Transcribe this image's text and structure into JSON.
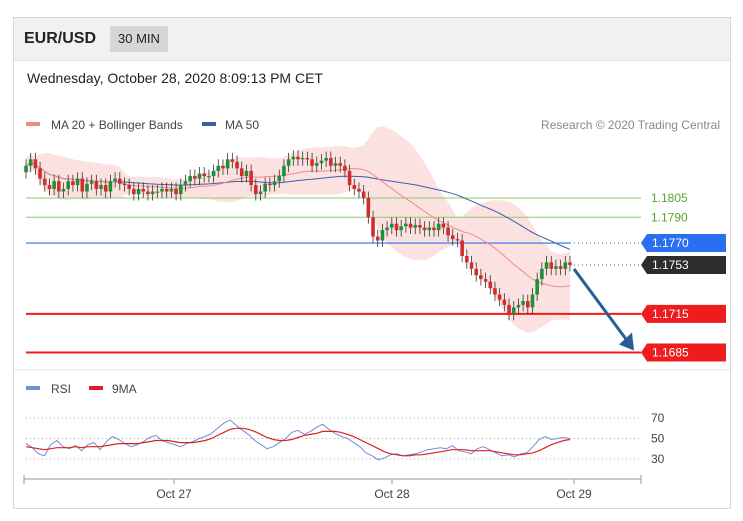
{
  "header": {
    "symbol": "EUR/USD",
    "timeframe": "30 MIN"
  },
  "timestamp": "Wednesday, October 28, 2020 8:09:13 PM CET",
  "legend": {
    "ma20": "MA 20 + Bollinger Bands",
    "ma50": "MA 50",
    "rsi": "RSI",
    "rsi_ma": "9MA"
  },
  "credit": "Research © 2020 Trading Central",
  "colors": {
    "ma20": "#f08a8a",
    "band": "#fbd9d9",
    "ma50": "#3a5fa8",
    "up": "#1f8f3a",
    "down": "#d62b2b",
    "support": "#ee1c1c",
    "resistance": "#8ccd6a",
    "pivot": "#2a6ff0",
    "current": "#2d2d2d",
    "arrow": "#2a5c9a",
    "rsi": "#6f8fd8",
    "rsi_ma": "#e02020"
  },
  "chart_data": [
    {
      "type": "candlestick",
      "title": "EUR/USD 30 MIN",
      "ylim": [
        1.1673,
        1.185
      ],
      "x_ticks": [
        "Oct 27",
        "Oct 28",
        "Oct 29"
      ],
      "levels": [
        {
          "label": "1.1805",
          "value": 1.1805,
          "kind": "resistance"
        },
        {
          "label": "1.1790",
          "value": 1.179,
          "kind": "resistance"
        },
        {
          "label": "1.1770",
          "value": 1.177,
          "kind": "pivot"
        },
        {
          "label": "1.1753",
          "value": 1.1753,
          "kind": "current"
        },
        {
          "label": "1.1715",
          "value": 1.1715,
          "kind": "support"
        },
        {
          "label": "1.1685",
          "value": 1.1685,
          "kind": "support"
        }
      ],
      "close": [
        1.183,
        1.1835,
        1.1828,
        1.182,
        1.1815,
        1.1812,
        1.1818,
        1.181,
        1.1812,
        1.1818,
        1.1815,
        1.182,
        1.181,
        1.1816,
        1.1818,
        1.1812,
        1.1815,
        1.181,
        1.1818,
        1.182,
        1.1816,
        1.1815,
        1.1812,
        1.1808,
        1.1812,
        1.181,
        1.1808,
        1.181,
        1.181,
        1.1812,
        1.181,
        1.1812,
        1.1808,
        1.1815,
        1.1818,
        1.1822,
        1.182,
        1.1824,
        1.1822,
        1.1822,
        1.1826,
        1.183,
        1.1828,
        1.1835,
        1.1833,
        1.1828,
        1.1822,
        1.1826,
        1.1815,
        1.1808,
        1.181,
        1.1816,
        1.1815,
        1.1818,
        1.1822,
        1.183,
        1.1835,
        1.1837,
        1.1835,
        1.1836,
        1.1835,
        1.183,
        1.1832,
        1.1834,
        1.1836,
        1.183,
        1.1832,
        1.183,
        1.1826,
        1.1815,
        1.1812,
        1.181,
        1.1805,
        1.179,
        1.1775,
        1.1772,
        1.178,
        1.1782,
        1.1785,
        1.178,
        1.1783,
        1.1785,
        1.1782,
        1.1784,
        1.1782,
        1.178,
        1.1782,
        1.178,
        1.1785,
        1.1782,
        1.1776,
        1.1773,
        1.1772,
        1.176,
        1.1755,
        1.175,
        1.1745,
        1.1742,
        1.174,
        1.1735,
        1.173,
        1.1726,
        1.1722,
        1.1715,
        1.172,
        1.1722,
        1.1725,
        1.172,
        1.173,
        1.1742,
        1.175,
        1.1755,
        1.175,
        1.1752,
        1.175,
        1.1755,
        1.1753
      ],
      "open": [
        1.1825,
        1.183,
        1.1835,
        1.1828,
        1.182,
        1.1815,
        1.1812,
        1.1818,
        1.181,
        1.1812,
        1.1818,
        1.1815,
        1.182,
        1.181,
        1.1816,
        1.1818,
        1.1812,
        1.1815,
        1.181,
        1.1818,
        1.182,
        1.1816,
        1.1815,
        1.1812,
        1.1808,
        1.1812,
        1.181,
        1.1808,
        1.181,
        1.181,
        1.1812,
        1.181,
        1.1812,
        1.1808,
        1.1815,
        1.1818,
        1.1822,
        1.182,
        1.1824,
        1.1822,
        1.1822,
        1.1826,
        1.183,
        1.1828,
        1.1835,
        1.1833,
        1.1828,
        1.1822,
        1.1826,
        1.1815,
        1.1808,
        1.181,
        1.1816,
        1.1815,
        1.1818,
        1.1822,
        1.183,
        1.1835,
        1.1837,
        1.1835,
        1.1836,
        1.1835,
        1.183,
        1.1832,
        1.1834,
        1.1836,
        1.183,
        1.1832,
        1.183,
        1.1826,
        1.1815,
        1.1812,
        1.181,
        1.1805,
        1.179,
        1.1775,
        1.1772,
        1.178,
        1.1782,
        1.1785,
        1.178,
        1.1783,
        1.1785,
        1.1782,
        1.1784,
        1.1782,
        1.178,
        1.1782,
        1.178,
        1.1785,
        1.1782,
        1.1776,
        1.1773,
        1.1772,
        1.176,
        1.1755,
        1.175,
        1.1745,
        1.1742,
        1.174,
        1.1735,
        1.173,
        1.1726,
        1.1722,
        1.1715,
        1.172,
        1.1722,
        1.1725,
        1.172,
        1.173,
        1.1742,
        1.175,
        1.1755,
        1.175,
        1.1752,
        1.175,
        1.1755
      ]
    },
    {
      "type": "line",
      "title": "RSI",
      "ylim": [
        25,
        75
      ],
      "y_ticks": [
        "70",
        "50",
        "30"
      ],
      "series": [
        {
          "name": "RSI",
          "values": [
            45,
            41,
            35,
            33,
            44,
            48,
            42,
            40,
            43,
            38,
            44,
            46,
            39,
            47,
            52,
            49,
            45,
            42,
            44,
            47,
            51,
            53,
            48,
            46,
            44,
            42,
            45,
            47,
            50,
            52,
            55,
            60,
            65,
            68,
            63,
            58,
            54,
            48,
            44,
            40,
            42,
            46,
            50,
            56,
            58,
            54,
            57,
            61,
            64,
            59,
            55,
            52,
            50,
            46,
            42,
            36,
            33,
            29,
            31,
            34,
            35,
            33,
            34,
            35,
            37,
            39,
            40,
            41,
            40,
            43,
            38,
            37,
            35,
            40,
            42,
            39,
            36,
            33,
            34,
            32,
            35,
            36,
            42,
            49,
            52,
            49,
            50,
            51,
            50
          ]
        },
        {
          "name": "9MA",
          "values": [
            42,
            41,
            40,
            39,
            40,
            41,
            41,
            41,
            42,
            41,
            42,
            42,
            42,
            43,
            44,
            45,
            45,
            45,
            45,
            46,
            47,
            48,
            48,
            48,
            47,
            46,
            46,
            46,
            47,
            48,
            50,
            53,
            56,
            59,
            60,
            60,
            59,
            57,
            54,
            51,
            49,
            48,
            48,
            49,
            51,
            53,
            54,
            55,
            57,
            57,
            57,
            56,
            54,
            52,
            49,
            46,
            43,
            40,
            37,
            35,
            34,
            33,
            33,
            34,
            34,
            35,
            36,
            37,
            38,
            39,
            39,
            39,
            38,
            38,
            38,
            38,
            37,
            36,
            35,
            34,
            34,
            35,
            36,
            38,
            41,
            44,
            46,
            48,
            49
          ]
        }
      ]
    }
  ]
}
